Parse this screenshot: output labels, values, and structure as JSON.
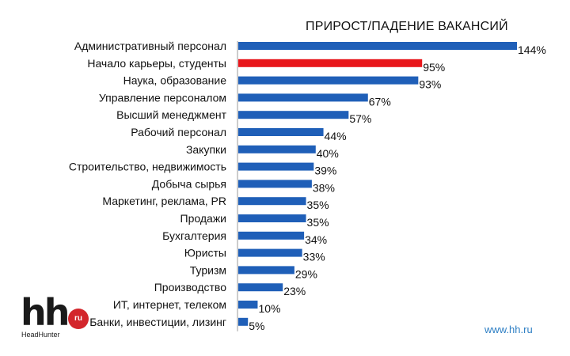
{
  "chart_data": {
    "type": "bar",
    "orientation": "horizontal",
    "title": "ПРИРОСТ/ПАДЕНИЕ ВАКАНСИЙ",
    "value_suffix": "%",
    "categories": [
      "Административный персонал",
      "Начало карьеры, студенты",
      "Наука, образование",
      "Управление персоналом",
      "Высший менеджмент",
      "Рабочий персонал",
      "Закупки",
      "Строительство, недвижимость",
      "Добыча сырья",
      "Маркетинг, реклама, PR",
      "Продажи",
      "Бухгалтерия",
      "Юристы",
      "Туризм",
      "Производство",
      "ИТ, интернет, телеком",
      "Банки, инвестиции, лизинг"
    ],
    "values": [
      144,
      95,
      93,
      67,
      57,
      44,
      40,
      39,
      38,
      35,
      35,
      34,
      33,
      29,
      23,
      10,
      5
    ],
    "highlight_index": 1,
    "xlim": [
      0,
      144
    ],
    "grid": false,
    "legend": "none",
    "colors": {
      "bar": "#1f5fb8",
      "highlight": "#e8161b",
      "axis": "#999999",
      "text": "#111111"
    }
  },
  "logo": {
    "mark": "hh",
    "badge": "ru",
    "name": "HeadHunter"
  },
  "footer": {
    "url": "www.hh.ru"
  }
}
